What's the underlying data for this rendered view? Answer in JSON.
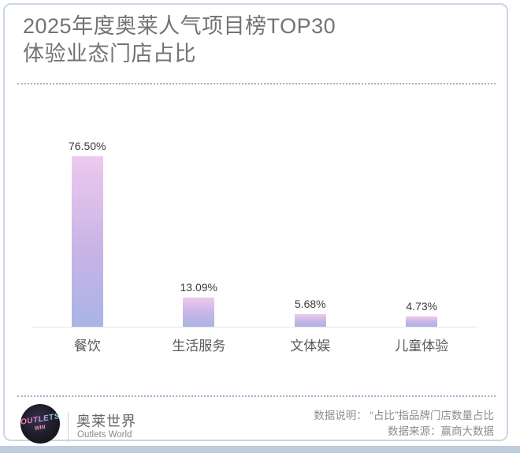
{
  "header": {
    "title_line1": "2025年度奥莱人气项目榜TOP30",
    "title_line2": "体验业态门店占比"
  },
  "chart_data": {
    "type": "bar",
    "title": "2025年度奥莱人气项目榜TOP30 体验业态门店占比",
    "categories": [
      "餐饮",
      "生活服务",
      "文体娱",
      "儿童体验"
    ],
    "values": [
      76.5,
      13.09,
      5.68,
      4.73
    ],
    "value_labels": [
      "76.50%",
      "13.09%",
      "5.68%",
      "4.73%"
    ],
    "xlabel": "",
    "ylabel": "",
    "ylim": [
      0,
      80
    ],
    "grid": false,
    "legend": false,
    "bar_color_top": "#edc9ee",
    "bar_color_bottom": "#a9b4e5",
    "axis_line_color": "#e6e6ea"
  },
  "footer": {
    "logo_line1": "OUTLETS",
    "logo_line2": "WIN",
    "brand_cn": "奥莱世界",
    "brand_en": "Outlets World",
    "note_line1": "数据说明： “占比”指品牌门店数量占比",
    "note_line2": "数据来源：赢商大数据"
  },
  "colors": {
    "card_border": "#ccd6e6",
    "title_text": "#737373",
    "divider_dotted": "#a9aecb",
    "value_text": "#3c3c3c",
    "category_text": "#595959",
    "note_text": "#8e8e8e",
    "bottom_band": "#bfcce0"
  }
}
